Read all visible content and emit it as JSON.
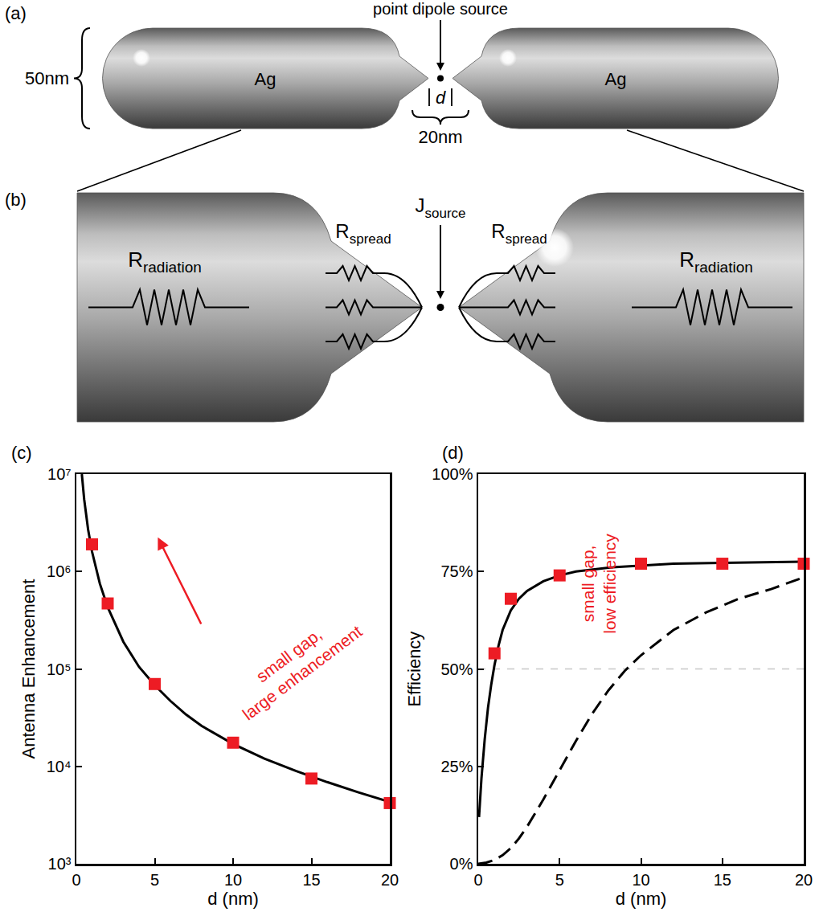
{
  "diagram": {
    "a": {
      "label": "(a)",
      "size": "50nm",
      "material_left": "Ag",
      "material_right": "Ag",
      "source": "point dipole source",
      "gap": "d",
      "tip_length": "20nm"
    },
    "b": {
      "label": "(b)",
      "radiation_resistor": {
        "main": "R",
        "sub": "radiation"
      },
      "spread_resistor": {
        "main": "R",
        "sub": "spread"
      },
      "source": {
        "main": "J",
        "sub": "source"
      }
    }
  },
  "chart_data": [
    {
      "type": "line",
      "panel_label": "(c)",
      "x_label": "d (nm)",
      "y_label": "Antenna Enhancement",
      "log": "y",
      "grid": false,
      "xlim": [
        0,
        20
      ],
      "xticks": [
        0,
        5,
        10,
        15,
        20
      ],
      "ylim": [
        1000,
        10000000
      ],
      "yticks": [
        {
          "value": 1000,
          "label": "10³"
        },
        {
          "value": 10000,
          "label": "10⁴"
        },
        {
          "value": 100000,
          "label": "10⁵"
        },
        {
          "value": 1000000,
          "label": "10⁶"
        },
        {
          "value": 10000000,
          "label": "10⁷"
        }
      ],
      "series": [
        {
          "type": "line",
          "color": "#000000",
          "line_style": "solid",
          "x": [
            0.35,
            0.5,
            0.75,
            1,
            1.5,
            2,
            3,
            4,
            5,
            6,
            7,
            8,
            10,
            12,
            14,
            16,
            18,
            20
          ],
          "values": [
            10000000,
            5500000,
            2700000,
            1600000,
            750000,
            430000,
            190000,
            105000,
            68000,
            47000,
            34000,
            26000,
            17000,
            12000,
            9000,
            6900,
            5400,
            4300
          ]
        },
        {
          "type": "scatter",
          "color": "#ed1c24",
          "marker": "square",
          "x": [
            1,
            2,
            5,
            10,
            15,
            20
          ],
          "values": [
            1900000,
            470000,
            70000,
            17500,
            7500,
            4200
          ]
        }
      ],
      "annotations": [
        {
          "lines": [
            "small gap,",
            "large enhancement"
          ],
          "color": "#ed1c24"
        }
      ]
    },
    {
      "type": "line",
      "panel_label": "(d)",
      "x_label": "d (nm)",
      "y_label": "Efficiency",
      "grid": false,
      "xlim": [
        0,
        20
      ],
      "xticks": [
        0,
        5,
        10,
        15,
        20
      ],
      "ylim": [
        0,
        100
      ],
      "yticks": [
        {
          "value": 0,
          "label": "0%"
        },
        {
          "value": 25,
          "label": "25%"
        },
        {
          "value": 50,
          "label": "50%"
        },
        {
          "value": 75,
          "label": "75%"
        },
        {
          "value": 100,
          "label": "100%"
        }
      ],
      "series": [
        {
          "type": "line",
          "color": "#c8c8c8",
          "line_style": "dashed",
          "x": [
            0,
            20
          ],
          "values": [
            50,
            50
          ]
        },
        {
          "type": "line",
          "color": "#000000",
          "line_style": "solid",
          "x": [
            0.05,
            0.2,
            0.4,
            0.6,
            0.8,
            1,
            1.25,
            1.5,
            2,
            2.5,
            3,
            4,
            5,
            6,
            8,
            10,
            12,
            15,
            20
          ],
          "values": [
            12,
            22,
            32,
            40,
            46,
            51,
            56,
            60,
            65,
            68,
            70,
            72.5,
            74,
            75,
            76,
            76.5,
            77,
            77.2,
            77.5
          ]
        },
        {
          "type": "line",
          "color": "#000000",
          "line_style": "longdashed",
          "x": [
            0,
            0.5,
            1,
            1.5,
            2,
            2.5,
            3,
            4,
            5,
            6,
            7,
            8,
            9,
            10,
            12,
            14,
            16,
            18,
            20
          ],
          "values": [
            0,
            0.3,
            1,
            2.2,
            4,
            6.5,
            9.5,
            16.5,
            24,
            31.5,
            38.5,
            44.5,
            49.5,
            53.5,
            60,
            64.5,
            68,
            70.5,
            73.5
          ]
        },
        {
          "type": "scatter",
          "color": "#ed1c24",
          "marker": "square",
          "x": [
            1,
            2,
            5,
            10,
            15,
            20
          ],
          "values": [
            54,
            68,
            74,
            77,
            77,
            77
          ]
        }
      ],
      "annotations": [
        {
          "lines": [
            "small gap,",
            "low efficiency"
          ],
          "color": "#ed1c24"
        }
      ]
    }
  ]
}
